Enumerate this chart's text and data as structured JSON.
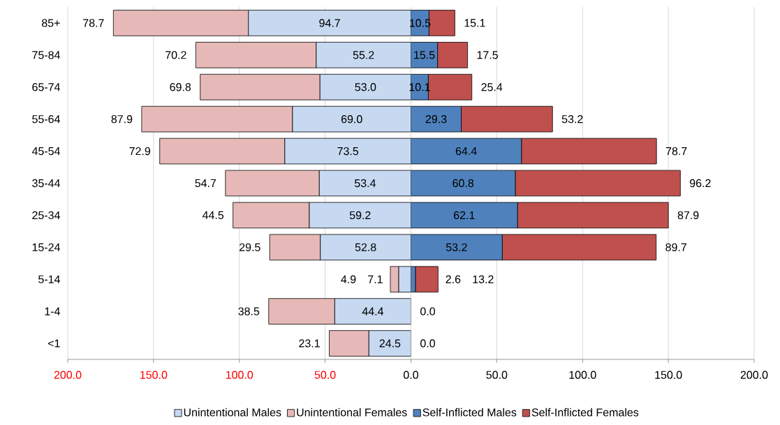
{
  "chart_data": [
    {
      "type": "bar",
      "orientation": "horizontal",
      "stacked": true,
      "categories": [
        "85+",
        "75-84",
        "65-74",
        "55-64",
        "45-54",
        "35-44",
        "25-34",
        "15-24",
        "5-14",
        "1-4",
        "<1"
      ],
      "series": [
        {
          "name": "Unintentional Males",
          "color": "#c6d9f1",
          "values": [
            94.7,
            55.2,
            53.0,
            69.0,
            73.5,
            53.4,
            59.2,
            52.8,
            7.1,
            44.4,
            24.5
          ],
          "value_labels": [
            "94.7",
            "55.2",
            "53.0",
            "69.0",
            "73.5",
            "53.4",
            "59.2",
            "52.8",
            "7.1",
            "44.4",
            "24.5"
          ]
        },
        {
          "name": "Unintentional Females",
          "color": "#e6b9b8",
          "values": [
            78.7,
            70.2,
            69.8,
            87.9,
            72.9,
            54.7,
            44.5,
            29.5,
            4.9,
            38.5,
            23.1
          ],
          "value_labels": [
            "78.7",
            "70.2",
            "69.8",
            "87.9",
            "72.9",
            "54.7",
            "44.5",
            "29.5",
            "4.9",
            "38.5",
            "23.1"
          ]
        }
      ],
      "xlim": [
        200,
        0
      ],
      "xticks": [
        {
          "value": 200,
          "label": "200.0"
        },
        {
          "value": 150,
          "label": "150.0"
        },
        {
          "value": 100,
          "label": "100.0"
        },
        {
          "value": 50,
          "label": "50.0"
        }
      ],
      "grid": "x",
      "legend": "bottom right"
    },
    {
      "type": "bar",
      "orientation": "horizontal",
      "stacked": true,
      "categories": [
        null,
        null,
        null,
        null,
        null,
        null,
        null,
        null,
        null,
        null,
        null
      ],
      "series": [
        {
          "name": "Self-Inflicted Males",
          "color": "#4f81bd",
          "values": [
            10.5,
            15.5,
            10.1,
            29.3,
            64.4,
            60.8,
            62.1,
            53.2,
            2.6,
            0.0,
            0.0
          ],
          "value_labels": [
            "10.5",
            "15.5",
            "10.1",
            "29.3",
            "64.4",
            "60.8",
            "62.1",
            "53.2",
            "2.6",
            null,
            null
          ]
        },
        {
          "name": "Self-Inflicted Females",
          "color": "#c0504d",
          "values": [
            15.1,
            17.5,
            25.4,
            53.2,
            78.7,
            96.2,
            87.9,
            89.7,
            13.2,
            0.0,
            0.0
          ],
          "value_labels": [
            "15.1",
            "17.5",
            "25.4",
            "53.2",
            "78.7",
            "96.2",
            "87.9",
            "89.7",
            "13.2",
            "0.0",
            "0.0"
          ]
        }
      ],
      "xlim": [
        0,
        200
      ],
      "xticks": [
        {
          "value": 0,
          "label": "0.0"
        },
        {
          "value": 50,
          "label": "50.0"
        },
        {
          "value": 100,
          "label": "100.0"
        },
        {
          "value": 150,
          "label": "150.0"
        },
        {
          "value": 200,
          "label": "200.0"
        }
      ],
      "grid": "x",
      "legend": "bottom left",
      "tick_labels": "x"
    }
  ]
}
